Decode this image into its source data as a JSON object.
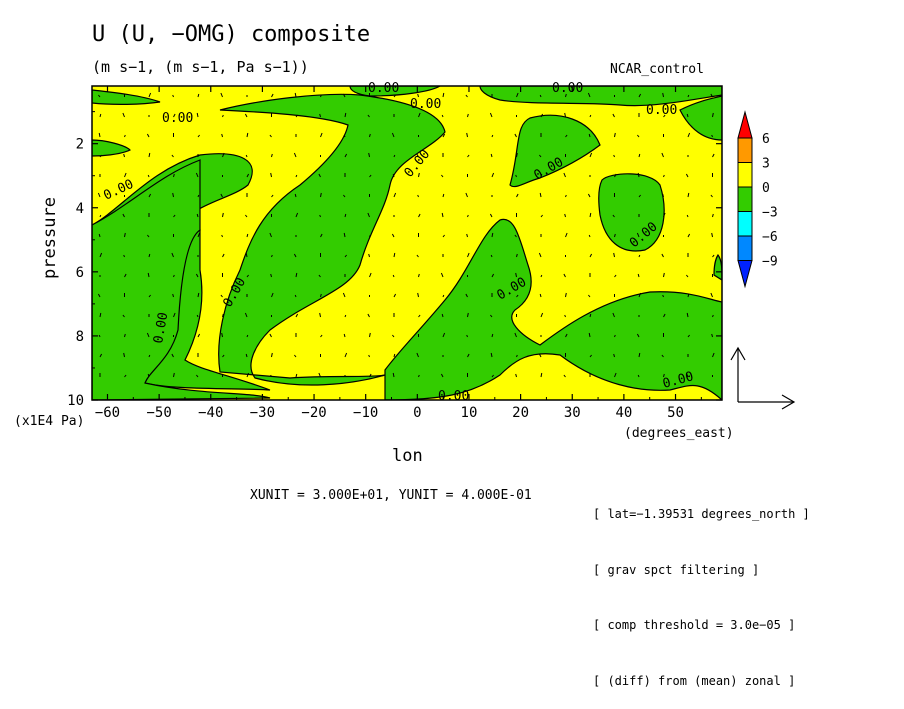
{
  "chart_data": {
    "type": "contour+vector",
    "title": "U (U, −OMG) composite",
    "units": "(m s−1, (m s−1, Pa s−1))",
    "run_label": "NCAR_control",
    "xlabel": "lon",
    "xunit_label": "(degrees_east)",
    "ylabel": "pressure",
    "yunit_label": "(x1E4 Pa)",
    "x_range": [
      -63,
      59
    ],
    "y_range": [
      0.2,
      10
    ],
    "y_inverted": true,
    "x_ticks": [
      -60,
      -50,
      -40,
      -30,
      -20,
      -10,
      0,
      10,
      20,
      30,
      40,
      50
    ],
    "x_tick_labels": [
      "−60",
      "−50",
      "−40",
      "−30",
      "−20",
      "−10",
      "0",
      "10",
      "20",
      "30",
      "40",
      "50"
    ],
    "y_ticks": [
      2,
      4,
      6,
      8,
      10
    ],
    "y_tick_labels": [
      "2",
      "4",
      "6",
      "8",
      "10"
    ],
    "contour_levels": [
      -9,
      -6,
      -3,
      0,
      3,
      6
    ],
    "contour_label": "0.00",
    "colorbar": {
      "labels": [
        "6",
        "3",
        "0",
        "−3",
        "−6",
        "−9"
      ],
      "colors": [
        "#ff0000",
        "#ff9900",
        "#ffff00",
        "#33cc00",
        "#00ffff",
        "#0088ff",
        "#0022ff"
      ]
    },
    "shading": {
      "positive": "#ffff00",
      "negative": "#33cc00"
    },
    "vector_scale": "XUNIT = 3.000E+01, YUNIT = 4.000E-01",
    "notes": [
      "[ lat=−1.39531 degrees_north ]",
      "[ grav spct filtering ]",
      "[ comp threshold = 3.0e−05 ]",
      "[ (diff) from (mean) zonal ]"
    ]
  }
}
